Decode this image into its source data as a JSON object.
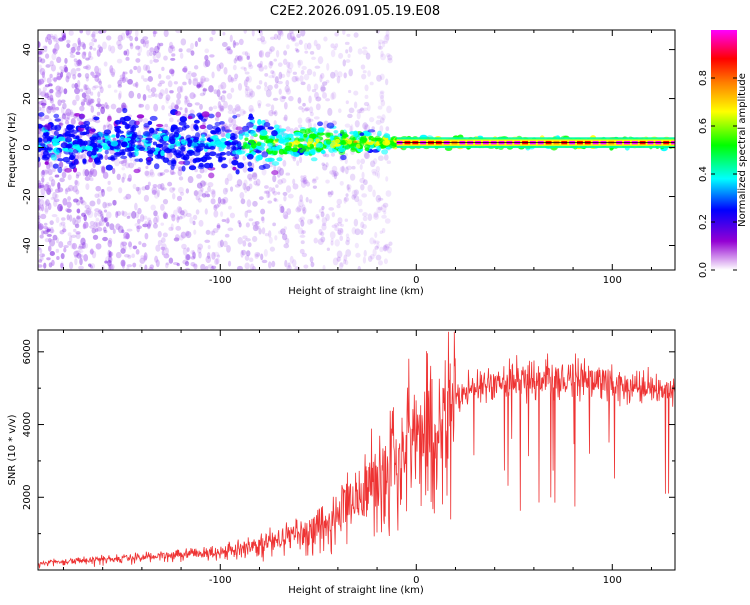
{
  "page_title": "C2E2.2026.091.05.19.E08",
  "chart_data": [
    {
      "type": "heatmap",
      "title": "C2E2.2026.091.05.19.E08",
      "xlabel": "Height of straight line (km)",
      "ylabel": "Frequency (Hz)",
      "xlim": [
        -193,
        132
      ],
      "ylim": [
        -50,
        48
      ],
      "x_ticks": [
        -100,
        0,
        100
      ],
      "x_tick_labels": [
        "-100",
        "0",
        "100"
      ],
      "y_ticks": [
        -40,
        -20,
        0,
        20,
        40
      ],
      "y_tick_labels": [
        "-40",
        "-20",
        "0",
        "20",
        "40"
      ],
      "colorbar": {
        "label": "Normalized spectral amplitude",
        "range": [
          0,
          1
        ],
        "ticks": [
          0.0,
          0.2,
          0.4,
          0.6,
          0.8
        ],
        "tick_labels": [
          "0.0",
          "0.2",
          "0.4",
          "0.6",
          "0.8"
        ],
        "colormap": [
          "#ffffff",
          "#9400d3",
          "#0000ff",
          "#00ffff",
          "#00ff00",
          "#ffff00",
          "#ff7f00",
          "#ff0000",
          "#ff00ff"
        ]
      },
      "signal": {
        "description_values": {
          "centerline_frequency_hz": 2,
          "noisy_region_x_range": [
            -193,
            -90
          ],
          "transition_region_x_range": [
            -90,
            -10
          ],
          "stable_line_x_range": [
            -10,
            132
          ]
        }
      }
    },
    {
      "type": "line",
      "xlabel": "Height of straight line (km)",
      "ylabel": "SNR (10 * v/v)",
      "xlim": [
        -193,
        132
      ],
      "ylim": [
        0,
        6600
      ],
      "x_ticks": [
        -100,
        0,
        100
      ],
      "x_tick_labels": [
        "-100",
        "0",
        "100"
      ],
      "y_ticks": [
        2000,
        4000,
        6000
      ],
      "y_tick_labels": [
        "2000",
        "4000",
        "6000"
      ],
      "series": [
        {
          "name": "SNR",
          "color": "#ee3333",
          "profile_x": [
            -193,
            -160,
            -130,
            -100,
            -80,
            -60,
            -40,
            -25,
            -15,
            -5,
            0,
            10,
            20,
            30,
            50,
            70,
            90,
            110,
            132
          ],
          "profile_y": [
            200,
            300,
            400,
            500,
            700,
            1000,
            1500,
            2100,
            2800,
            3200,
            3700,
            3900,
            4700,
            5000,
            5200,
            5300,
            5200,
            5000,
            5000
          ]
        }
      ]
    }
  ]
}
